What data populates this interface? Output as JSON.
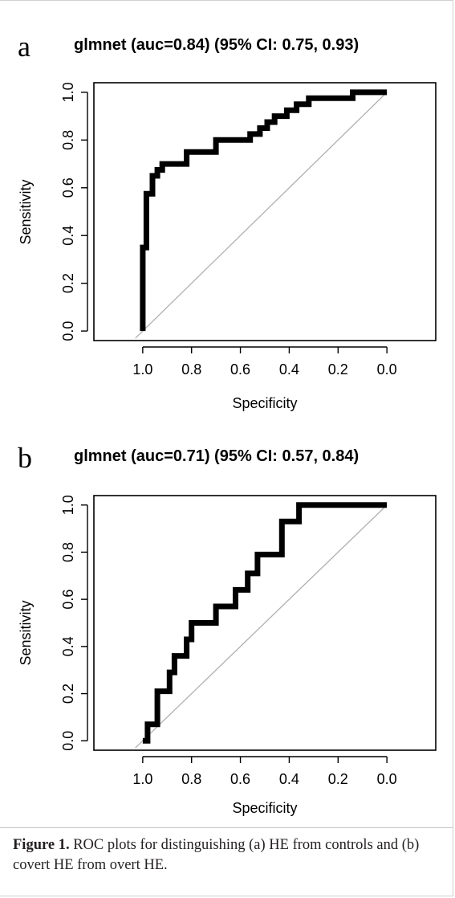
{
  "caption": {
    "label": "Figure 1.",
    "text": " ROC plots for distinguishing (a) HE from controls and (b) covert HE from overt HE."
  },
  "chart_data": [
    {
      "type": "line",
      "panel_label": "a",
      "title": "glmnet (auc=0.84) (95% CI: 0.75, 0.93)",
      "xlabel": "Specificity",
      "ylabel": "Sensitivity",
      "x_reversed": true,
      "xlim": [
        1.2,
        -0.2
      ],
      "ylim": [
        -0.04,
        1.04
      ],
      "x_ticks": [
        "1.0",
        "0.8",
        "0.6",
        "0.4",
        "0.2",
        "0.0"
      ],
      "y_ticks": [
        "0.0",
        "0.2",
        "0.4",
        "0.6",
        "0.8",
        "1.0"
      ],
      "grid": false,
      "series": [
        {
          "x": [
            1.0,
            1.0,
            0.985,
            0.985,
            0.96,
            0.96,
            0.94,
            0.94,
            0.92,
            0.92,
            0.82,
            0.82,
            0.7,
            0.7,
            0.56,
            0.56,
            0.52,
            0.52,
            0.49,
            0.49,
            0.46,
            0.46,
            0.41,
            0.41,
            0.37,
            0.37,
            0.32,
            0.32,
            0.28,
            0.28,
            0.14,
            0.14,
            0.1,
            0.1,
            0.0
          ],
          "y": [
            0.0,
            0.35,
            0.35,
            0.575,
            0.575,
            0.65,
            0.65,
            0.675,
            0.675,
            0.7,
            0.7,
            0.75,
            0.75,
            0.8,
            0.8,
            0.825,
            0.825,
            0.85,
            0.85,
            0.875,
            0.875,
            0.9,
            0.9,
            0.925,
            0.925,
            0.95,
            0.95,
            0.975,
            0.975,
            0.975,
            0.975,
            1.0,
            1.0,
            1.0,
            1.0
          ]
        }
      ],
      "reference_line": {
        "x": [
          1.03,
          0.0
        ],
        "y": [
          -0.03,
          1.0
        ]
      }
    },
    {
      "type": "line",
      "panel_label": "b",
      "title": "glmnet (auc=0.71) (95% CI: 0.57, 0.84)",
      "xlabel": "Specificity",
      "ylabel": "Sensitivity",
      "x_reversed": true,
      "xlim": [
        1.2,
        -0.2
      ],
      "ylim": [
        -0.04,
        1.04
      ],
      "x_ticks": [
        "1.0",
        "0.8",
        "0.6",
        "0.4",
        "0.2",
        "0.0"
      ],
      "y_ticks": [
        "0.0",
        "0.2",
        "0.4",
        "0.6",
        "0.8",
        "1.0"
      ],
      "grid": false,
      "series": [
        {
          "x": [
            1.0,
            0.98,
            0.98,
            0.94,
            0.94,
            0.89,
            0.89,
            0.87,
            0.87,
            0.82,
            0.82,
            0.8,
            0.8,
            0.7,
            0.7,
            0.62,
            0.62,
            0.57,
            0.57,
            0.53,
            0.53,
            0.43,
            0.43,
            0.36,
            0.36,
            0.0
          ],
          "y": [
            0.0,
            0.0,
            0.07,
            0.07,
            0.21,
            0.21,
            0.29,
            0.29,
            0.36,
            0.36,
            0.43,
            0.43,
            0.5,
            0.5,
            0.57,
            0.57,
            0.64,
            0.64,
            0.71,
            0.71,
            0.79,
            0.79,
            0.93,
            0.93,
            1.0,
            1.0
          ]
        }
      ],
      "reference_line": {
        "x": [
          1.03,
          0.0
        ],
        "y": [
          -0.03,
          1.0
        ]
      }
    }
  ]
}
